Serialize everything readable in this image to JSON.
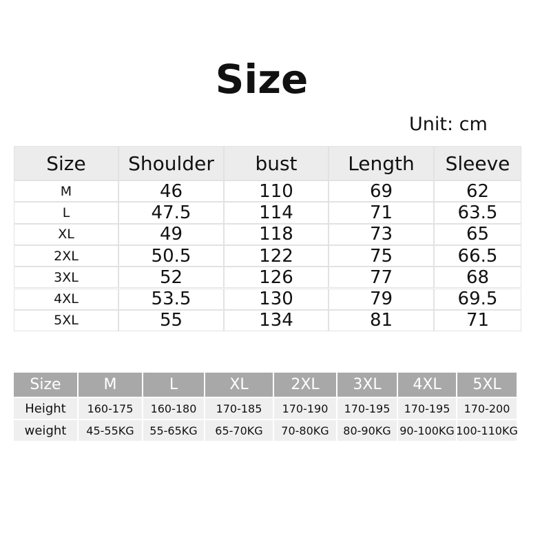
{
  "title": "Size",
  "unit": "Unit: cm",
  "table1": {
    "header": [
      "Size",
      "Shoulder",
      "bust",
      "Length",
      "Sleeve"
    ],
    "rows": [
      [
        "M",
        "46",
        "110",
        "69",
        "62"
      ],
      [
        "L",
        "47.5",
        "114",
        "71",
        "63.5"
      ],
      [
        "XL",
        "49",
        "118",
        "73",
        "65"
      ],
      [
        "2XL",
        "50.5",
        "122",
        "75",
        "66.5"
      ],
      [
        "3XL",
        "52",
        "126",
        "77",
        "68"
      ],
      [
        "4XL",
        "53.5",
        "130",
        "79",
        "69.5"
      ],
      [
        "5XL",
        "55",
        "134",
        "81",
        "71"
      ]
    ]
  },
  "table2": {
    "header": [
      "Size",
      "M",
      "L",
      "XL",
      "2XL",
      "3XL",
      "4XL",
      "5XL"
    ],
    "rows": [
      [
        "Height",
        "160-175",
        "160-180",
        "170-185",
        "170-190",
        "170-195",
        "170-195",
        "170-200"
      ],
      [
        "weight",
        "45-55KG",
        "55-65KG",
        "65-70KG",
        "70-80KG",
        "80-90KG",
        "90-100KG",
        "100-110KG"
      ]
    ]
  }
}
